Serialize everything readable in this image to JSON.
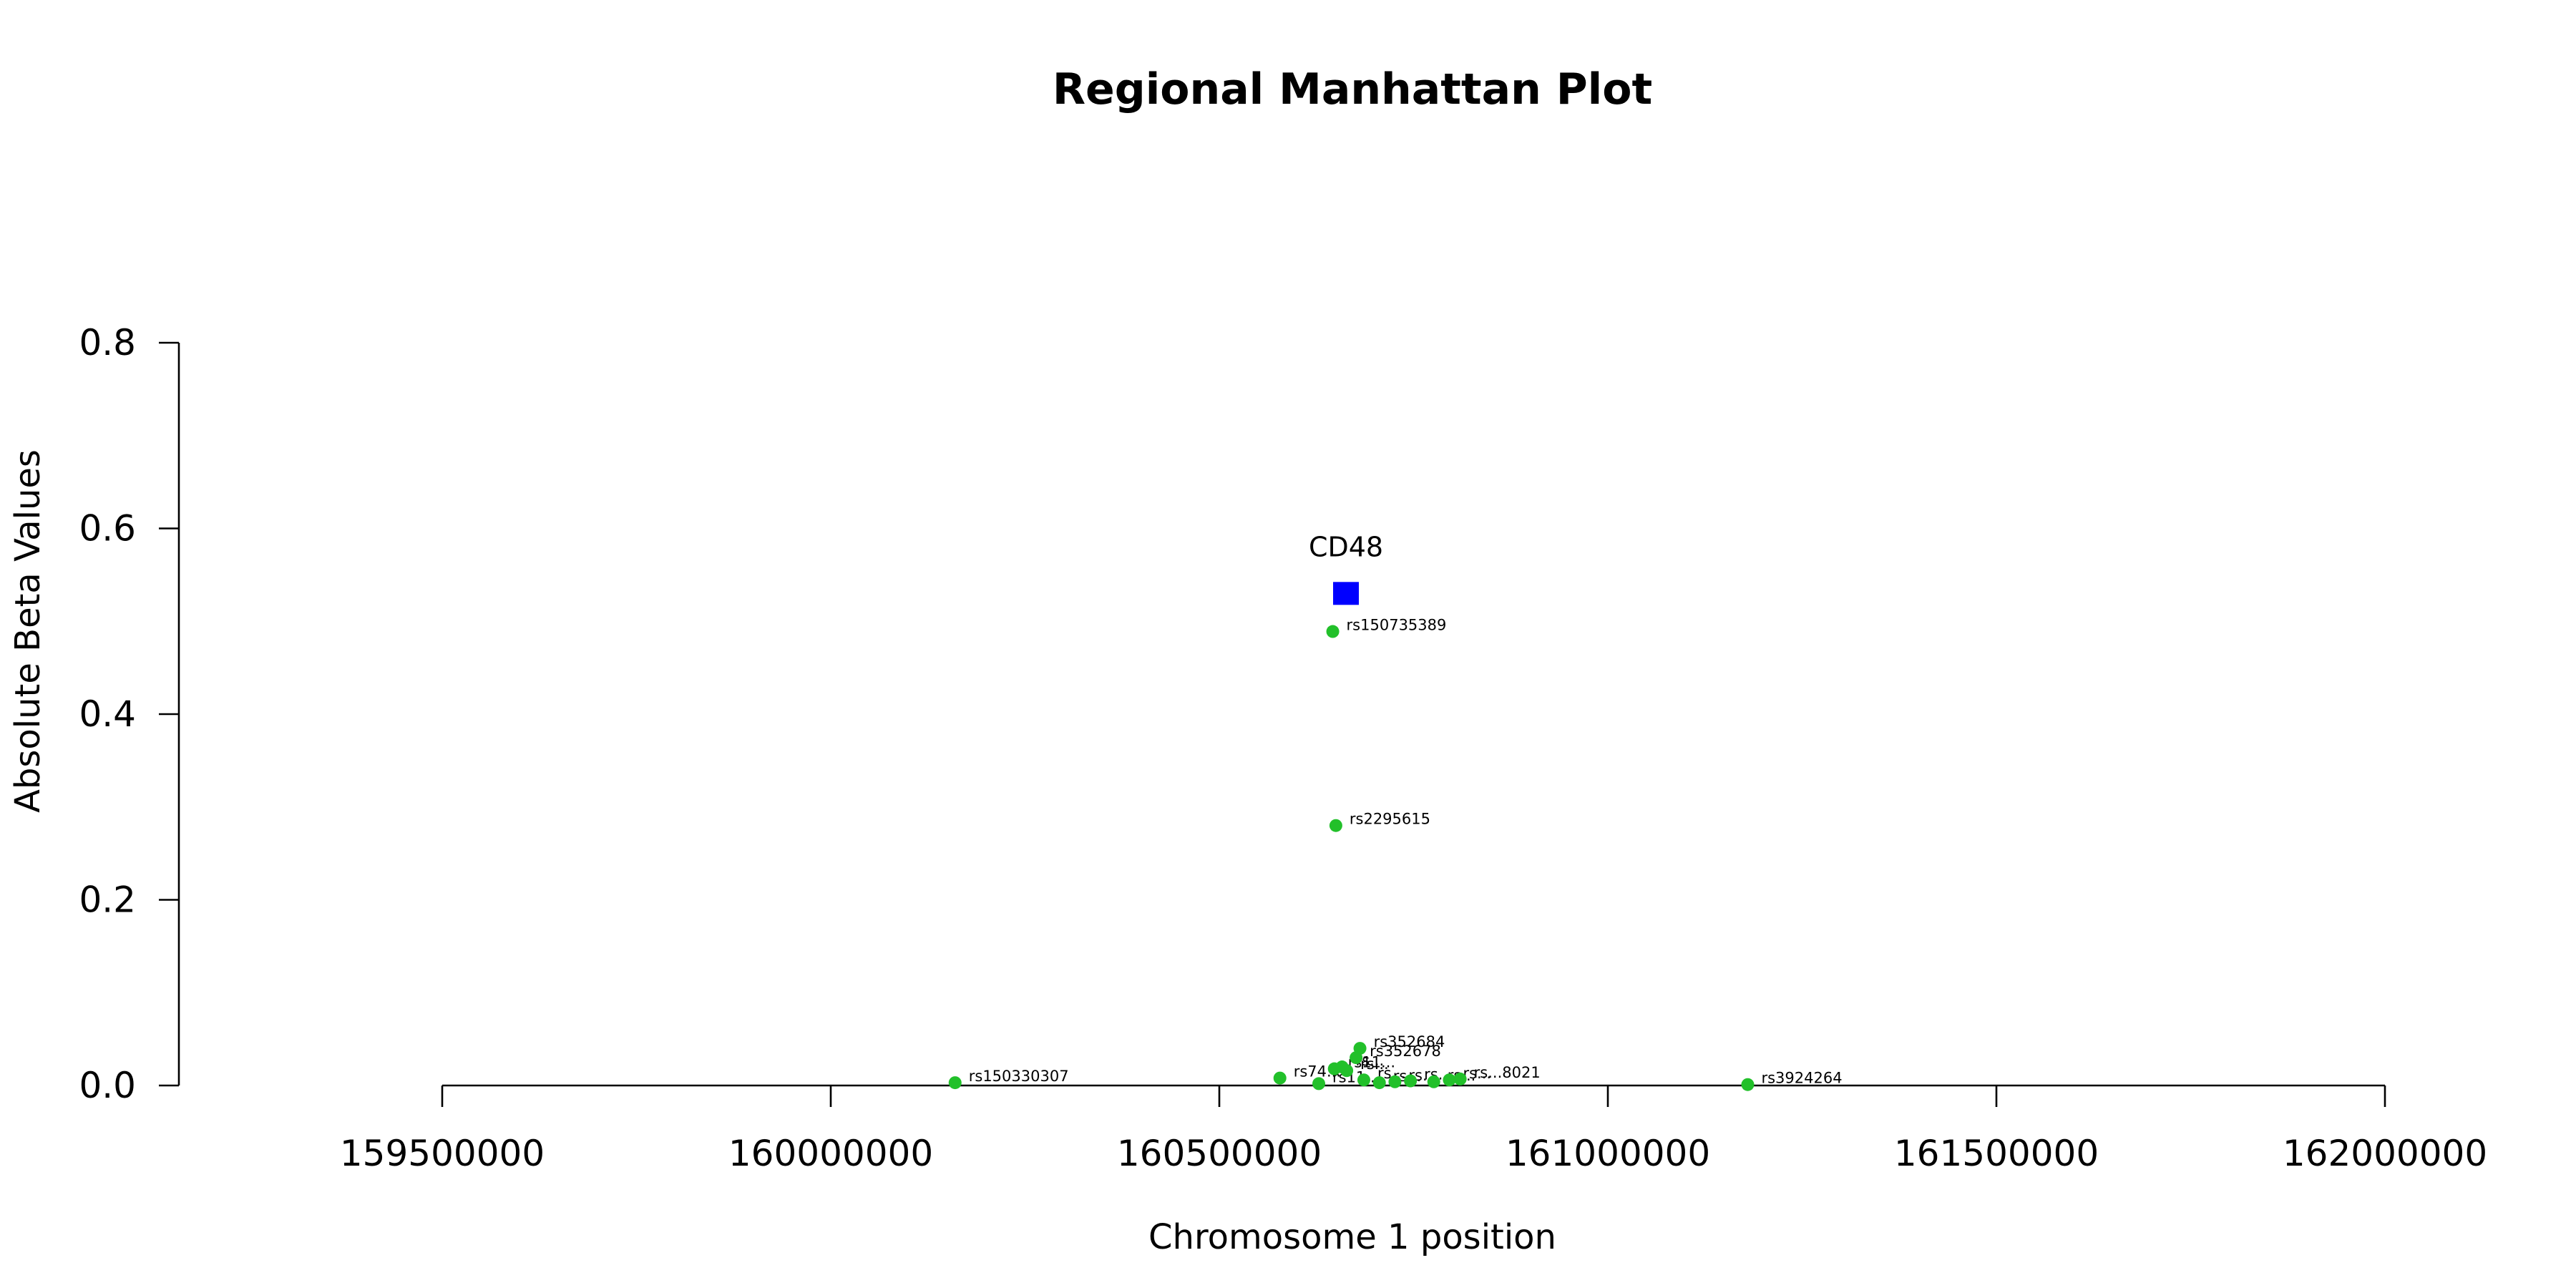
{
  "chart_data": {
    "type": "scatter",
    "title": "Regional Manhattan Plot",
    "xlabel": "Chromosome 1 position",
    "ylabel": "Absolute Beta Values",
    "xlim": [
      159500000,
      162000000
    ],
    "ylim": [
      0,
      0.8
    ],
    "x_ticks": [
      159500000,
      160000000,
      160500000,
      161000000,
      161500000,
      162000000
    ],
    "y_ticks": [
      "0.0",
      "0.2",
      "0.4",
      "0.6",
      "0.8"
    ],
    "grid": false,
    "colors": {
      "snp": "#22c02a",
      "gene": "#0000ff"
    },
    "gene": {
      "name": "CD48",
      "x": 160663000,
      "y": 0.53
    },
    "points": [
      {
        "label": "rs150330307",
        "x": 160160000,
        "y": 0.003
      },
      {
        "label": "rs74...",
        "x": 160578000,
        "y": 0.008
      },
      {
        "label": "rs11...",
        "x": 160628000,
        "y": 0.002
      },
      {
        "label": "rs150735389",
        "x": 160646000,
        "y": 0.489
      },
      {
        "label": "rs2295615",
        "x": 160650000,
        "y": 0.28
      },
      {
        "label": "rs11...",
        "x": 160648000,
        "y": 0.018
      },
      {
        "label": "rs...",
        "x": 160658000,
        "y": 0.02
      },
      {
        "label": "rs...",
        "x": 160664000,
        "y": 0.016
      },
      {
        "label": "rs352684",
        "x": 160681000,
        "y": 0.04
      },
      {
        "label": "rs352678",
        "x": 160676000,
        "y": 0.03
      },
      {
        "label": "rs...",
        "x": 160686000,
        "y": 0.006
      },
      {
        "label": "rs...",
        "x": 160706000,
        "y": 0.003
      },
      {
        "label": "rs...",
        "x": 160726000,
        "y": 0.004
      },
      {
        "label": "rs...",
        "x": 160746000,
        "y": 0.005
      },
      {
        "label": "rs...",
        "x": 160776000,
        "y": 0.004
      },
      {
        "label": "rs...",
        "x": 160796000,
        "y": 0.006
      },
      {
        "label": "rs...8021",
        "x": 160810000,
        "y": 0.007
      },
      {
        "label": "rs3924264",
        "x": 161180000,
        "y": 0.001
      }
    ]
  }
}
